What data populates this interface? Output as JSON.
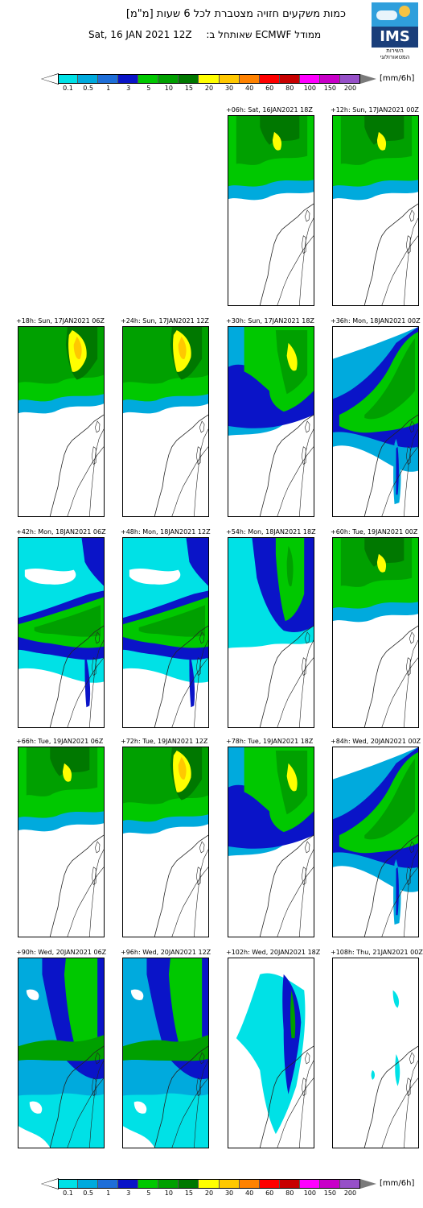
{
  "header": {
    "title": "כמות משקעים חזויה מצטברת לכל 6 שעות [מ\"מ]",
    "model_line": "ממודל ECMWF שאותחל ב:",
    "init_date": "Sat, 16 JAN 2021 12Z"
  },
  "logo": {
    "text": "IMS",
    "subtext": "השירות המטאורולוגי"
  },
  "colorbar": {
    "unit": "[mm/6h]",
    "ticks": [
      "0.1",
      "0.5",
      "1",
      "3",
      "5",
      "10",
      "15",
      "20",
      "30",
      "40",
      "60",
      "80",
      "100",
      "150",
      "200"
    ],
    "colors": [
      "#00e1e6",
      "#00aadd",
      "#1e6ed8",
      "#0a14c8",
      "#00c800",
      "#00a000",
      "#007800",
      "#ffff00",
      "#ffc800",
      "#ff8200",
      "#ff0000",
      "#c80000",
      "#ff00ff",
      "#c800c8",
      "#9650c8"
    ],
    "below_color": "#ffffff",
    "above_color": "#7a7a7a"
  },
  "panels": [
    {
      "id": "p06",
      "label": "+06h: Sat, 16JAN2021 18Z",
      "pattern": "north-heavy"
    },
    {
      "id": "p12",
      "label": "+12h: Sun, 17JAN2021 00Z",
      "pattern": "north-heavy"
    },
    {
      "id": "p18",
      "label": "+18h: Sun, 17JAN2021 06Z",
      "pattern": "north-yellow"
    },
    {
      "id": "p24",
      "label": "+24h: Sun, 17JAN2021 12Z",
      "pattern": "north-yellow"
    },
    {
      "id": "p30",
      "label": "+30h: Sun, 17JAN2021 18Z",
      "pattern": "band-mid"
    },
    {
      "id": "p36",
      "label": "+36h: Mon, 18JAN2021 00Z",
      "pattern": "diagonal"
    },
    {
      "id": "p42",
      "label": "+42h: Mon, 18JAN2021 06Z",
      "pattern": "diffuse-band"
    },
    {
      "id": "p48",
      "label": "+48h: Mon, 18JAN2021 12Z",
      "pattern": "diffuse-band"
    },
    {
      "id": "p54",
      "label": "+54h: Mon, 18JAN2021 18Z",
      "pattern": "blue-top"
    },
    {
      "id": "p60",
      "label": "+60h: Tue, 19JAN2021 00Z",
      "pattern": "north-heavy"
    },
    {
      "id": "p66",
      "label": "+66h: Tue, 19JAN2021 06Z",
      "pattern": "north-heavy"
    },
    {
      "id": "p72",
      "label": "+72h: Tue, 19JAN2021 12Z",
      "pattern": "north-yellow"
    },
    {
      "id": "p78",
      "label": "+78h: Tue, 19JAN2021 18Z",
      "pattern": "band-mid"
    },
    {
      "id": "p84",
      "label": "+84h: Wed, 20JAN2021 00Z",
      "pattern": "diagonal"
    },
    {
      "id": "p90",
      "label": "+90h: Wed, 20JAN2021 06Z",
      "pattern": "widespread"
    },
    {
      "id": "p96",
      "label": "+96h: Wed, 20JAN2021 12Z",
      "pattern": "widespread"
    },
    {
      "id": "p102",
      "label": "+102h: Wed, 20JAN2021 18Z",
      "pattern": "scattered"
    },
    {
      "id": "p108",
      "label": "+108h: Thu, 21JAN2021 00Z",
      "pattern": "sparse"
    }
  ]
}
